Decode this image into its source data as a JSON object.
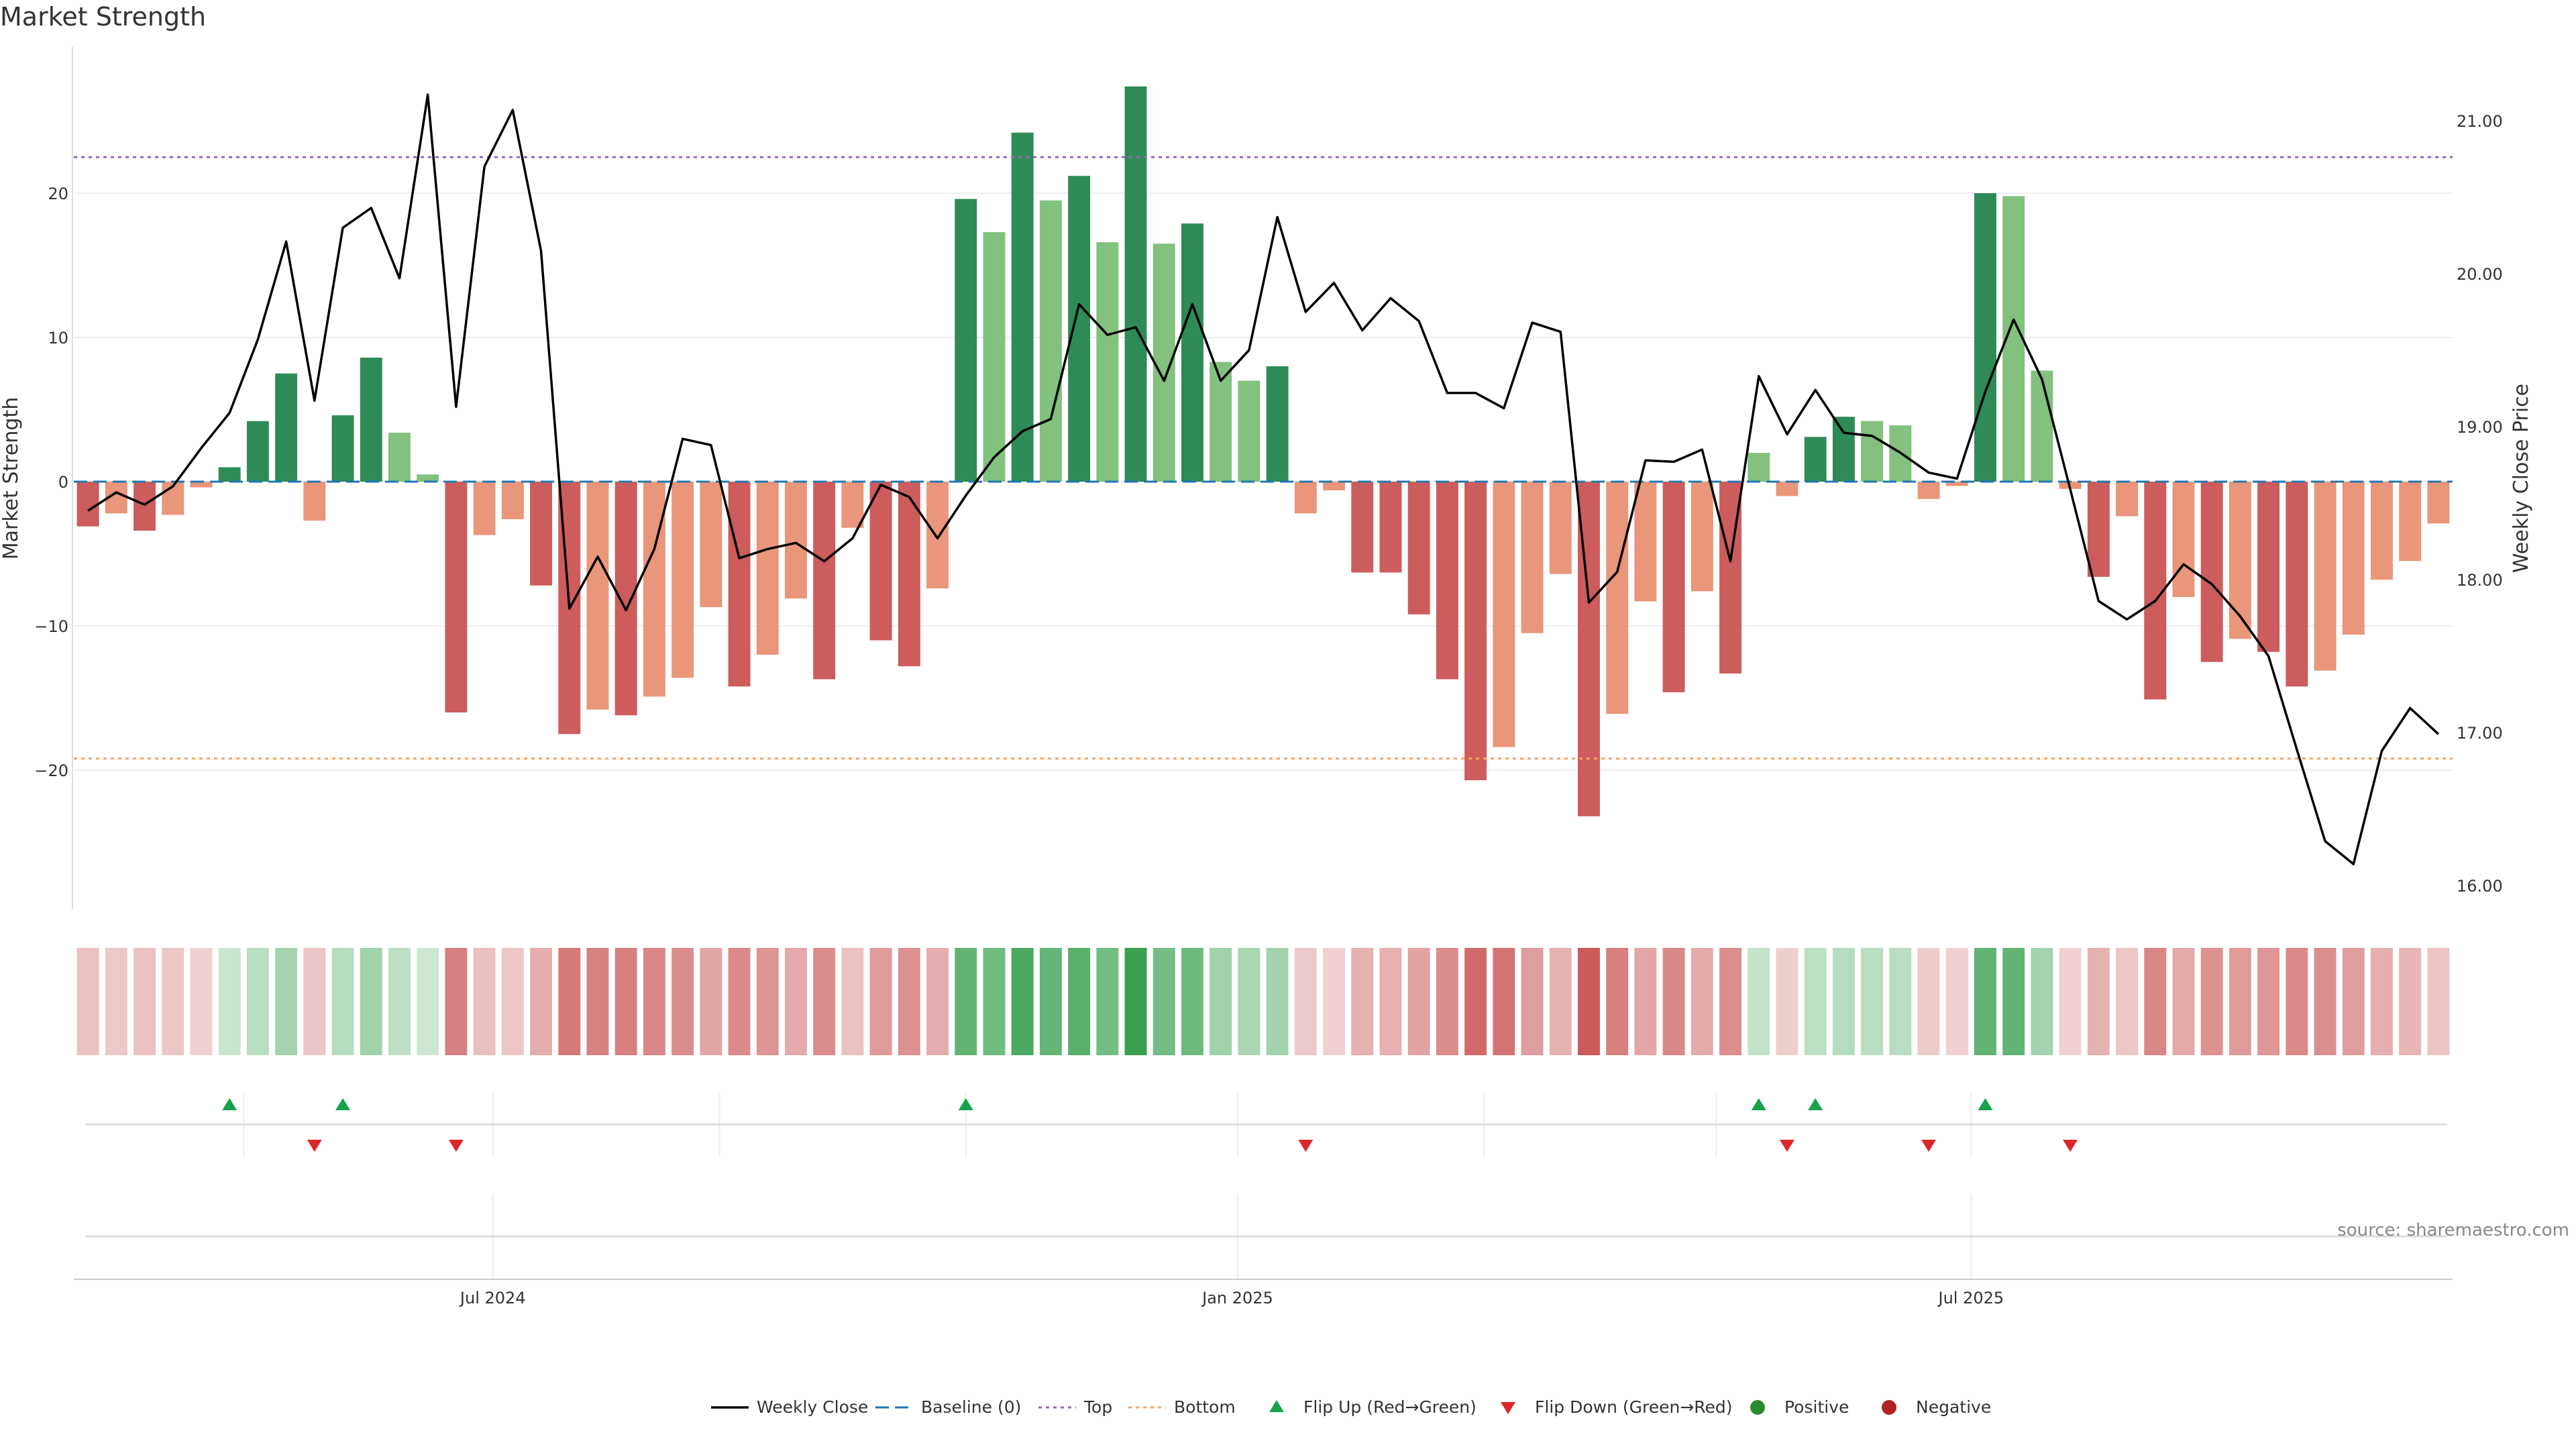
{
  "chart_data": {
    "type": "bar",
    "title": "Market Strength",
    "ylabel_left": "Market Strength",
    "ylabel_right": "Weekly Close Price",
    "ylim_left": [
      -29.5,
      29.5
    ],
    "ylim_right": [
      15.85,
      21.5
    ],
    "left_ticks": [
      20,
      10,
      0,
      -10,
      -20
    ],
    "left_tick_labels": [
      "20",
      "10",
      "0",
      "−10",
      "−20"
    ],
    "right_ticks": [
      21.0,
      20.0,
      19.0,
      18.0,
      17.0,
      16.0
    ],
    "right_tick_labels": [
      "21.00",
      "20.00",
      "19.00",
      "18.00",
      "17.00",
      "16.00"
    ],
    "x_tick_labels": [
      {
        "label": "Jul 2024",
        "index": 14.3
      },
      {
        "label": "Jan 2025",
        "index": 40.6
      },
      {
        "label": "Jul 2025",
        "index": 66.5
      }
    ],
    "reference_lines": {
      "baseline": 0,
      "top": 22.5,
      "bottom": -19.2
    },
    "strength_values": [
      -3.1,
      -2.2,
      -3.4,
      -2.3,
      -0.4,
      1.0,
      4.2,
      7.5,
      -2.7,
      4.6,
      8.6,
      3.4,
      0.5,
      -16.0,
      -3.7,
      -2.6,
      -7.2,
      -17.5,
      -15.8,
      -16.2,
      -14.9,
      -13.6,
      -8.7,
      -14.2,
      -12.0,
      -8.1,
      -13.7,
      -3.2,
      -11.0,
      -12.8,
      -7.4,
      19.6,
      17.3,
      24.2,
      19.5,
      21.2,
      16.6,
      27.4,
      16.5,
      17.9,
      8.3,
      7.0,
      8.0,
      -2.2,
      -0.6,
      -6.3,
      -6.3,
      -9.2,
      -13.7,
      -20.7,
      -18.4,
      -10.5,
      -6.4,
      -23.2,
      -16.1,
      -8.3,
      -14.6,
      -7.6,
      -13.3,
      2.0,
      -1.0,
      3.1,
      4.5,
      4.2,
      3.9,
      -1.2,
      -0.3,
      20.0,
      19.8,
      7.7,
      -0.5,
      -6.6,
      -2.4,
      -15.1,
      -8.0,
      -12.5,
      -10.9,
      -11.8,
      -14.2,
      -13.1,
      -10.6,
      -6.8,
      -5.5,
      -2.9
    ],
    "series": [
      {
        "name": "Weekly Close",
        "values": [
          18.45,
          18.57,
          18.49,
          18.61,
          18.86,
          19.09,
          19.57,
          20.21,
          19.17,
          20.3,
          20.43,
          19.97,
          21.17,
          19.13,
          20.7,
          21.07,
          20.15,
          17.81,
          18.15,
          17.8,
          18.2,
          18.92,
          18.88,
          18.14,
          18.2,
          18.24,
          18.12,
          18.27,
          18.62,
          18.54,
          18.27,
          18.55,
          18.8,
          18.97,
          19.05,
          19.8,
          19.6,
          19.65,
          19.3,
          19.8,
          19.3,
          19.5,
          20.37,
          19.75,
          19.94,
          19.63,
          19.84,
          19.69,
          19.22,
          19.22,
          19.12,
          19.68,
          19.62,
          17.85,
          18.05,
          18.78,
          18.77,
          18.85,
          18.12,
          19.33,
          18.95,
          19.24,
          18.96,
          18.94,
          18.83,
          18.7,
          18.66,
          19.23,
          19.7,
          19.31,
          18.59,
          17.86,
          17.74,
          17.86,
          18.1,
          17.97,
          17.76,
          17.5,
          16.89,
          16.29,
          16.14,
          16.88,
          17.16,
          16.99
        ]
      }
    ],
    "flip_up_indices": [
      5,
      9,
      31,
      59,
      61,
      67
    ],
    "flip_down_indices": [
      8,
      13,
      43,
      60,
      65,
      70
    ],
    "source": "source: sharemaestro.com",
    "legend": [
      {
        "label": "Weekly Close"
      },
      {
        "label": "Baseline (0)"
      },
      {
        "label": "Top"
      },
      {
        "label": "Bottom"
      },
      {
        "label": "Flip Up (Red→Green)"
      },
      {
        "label": "Flip Down (Green→Red)"
      },
      {
        "label": "Positive"
      },
      {
        "label": "Negative"
      }
    ]
  },
  "colors": {
    "pos_strong": "#2e8b57",
    "pos_weak": "#82c17e",
    "neg_strong": "#cd5c5c",
    "neg_weak": "#e9967a",
    "price_line": "#000000",
    "baseline": "#1f77b4",
    "top_line": "#9467bd",
    "bottom_line": "#f4a460",
    "flip_up": "#16a34a",
    "flip_down": "#dc2626",
    "positive_dot": "#2a8b2a",
    "negative_dot": "#b22222"
  }
}
